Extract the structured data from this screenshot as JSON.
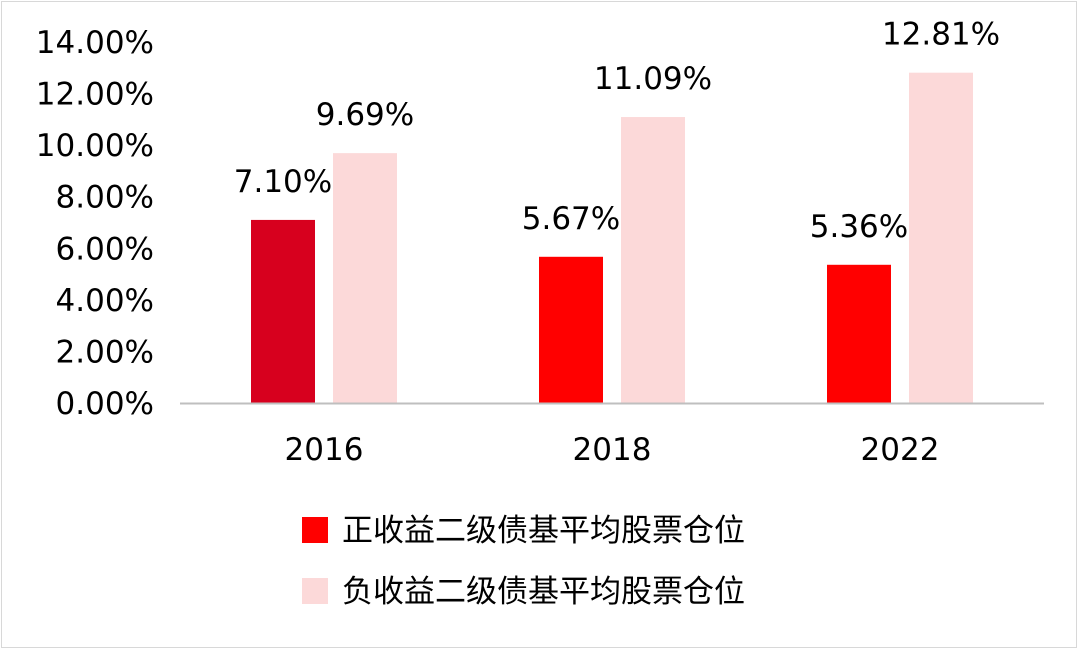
{
  "chart_data": {
    "type": "bar",
    "title": "",
    "xlabel": "",
    "ylabel": "",
    "categories": [
      "2016",
      "2018",
      "2022"
    ],
    "series": [
      {
        "name": "正收益二级债基平均股票仓位",
        "values": [
          7.1,
          5.67,
          5.36
        ],
        "labels": [
          "7.10%",
          "5.67%",
          "5.36%"
        ],
        "colors": [
          "#d7001e",
          "#ff0000",
          "#ff0000"
        ]
      },
      {
        "name": "负收益二级债基平均股票仓位",
        "values": [
          9.69,
          11.09,
          12.81
        ],
        "labels": [
          "9.69%",
          "11.09%",
          "12.81%"
        ],
        "colors": [
          "#fcd9d9",
          "#fcd9d9",
          "#fcd9d9"
        ]
      }
    ],
    "ylim": [
      0,
      14
    ],
    "yticks": [
      {
        "value": 0,
        "label": "0.00%"
      },
      {
        "value": 2,
        "label": "2.00%"
      },
      {
        "value": 4,
        "label": "4.00%"
      },
      {
        "value": 6,
        "label": "6.00%"
      },
      {
        "value": 8,
        "label": "8.00%"
      },
      {
        "value": 10,
        "label": "10.00%"
      },
      {
        "value": 12,
        "label": "12.00%"
      },
      {
        "value": 14,
        "label": "14.00%"
      }
    ],
    "grid": false,
    "legend_position": "bottom",
    "legend": [
      {
        "label": "正收益二级债基平均股票仓位",
        "color": "#ff0000"
      },
      {
        "label": "负收益二级债基平均股票仓位",
        "color": "#fcd9d9"
      }
    ],
    "axis_color": "#bfbfbf"
  }
}
